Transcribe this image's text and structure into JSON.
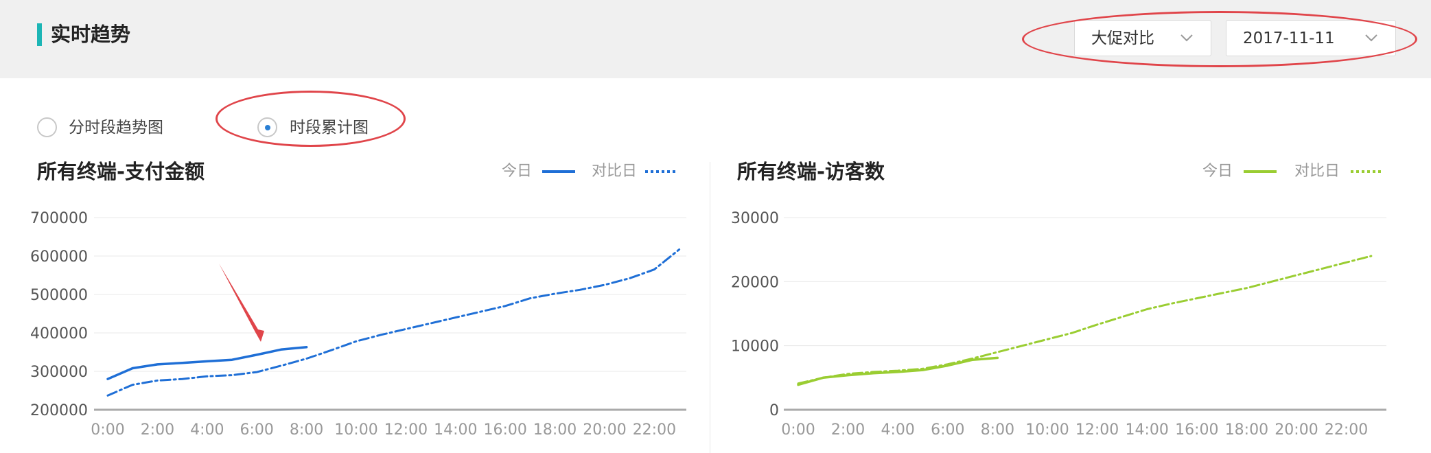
{
  "header": {
    "title": "实时趋势"
  },
  "filters": {
    "compare_select": {
      "value": "大促对比"
    },
    "date_select": {
      "value": "2017-11-11"
    }
  },
  "view_mode": {
    "options": [
      {
        "label": "分时段趋势图",
        "selected": false
      },
      {
        "label": "时段累计图",
        "selected": true
      }
    ]
  },
  "colors": {
    "blue": "#1f6fd6",
    "green": "#9acd32",
    "annotation_red": "#e0454a",
    "title_accent": "#1cb5b5"
  },
  "chart_data": [
    {
      "type": "line",
      "title": "所有终端-支付金额",
      "xlabel": "",
      "ylabel": "",
      "x_ticks": [
        "0:00",
        "2:00",
        "4:00",
        "6:00",
        "8:00",
        "10:00",
        "12:00",
        "14:00",
        "16:00",
        "18:00",
        "20:00",
        "22:00"
      ],
      "y_ticks": [
        200000,
        300000,
        400000,
        500000,
        600000,
        700000
      ],
      "ylim": [
        200000,
        700000
      ],
      "xlim": [
        0,
        23
      ],
      "grid": true,
      "legend_position": "top-right",
      "series": [
        {
          "name": "今日",
          "style": "solid",
          "color": "#1f6fd6",
          "x": [
            0,
            1,
            2,
            3,
            4,
            5,
            6,
            7,
            8
          ],
          "y": [
            280000,
            308000,
            318000,
            322000,
            326000,
            330000,
            343000,
            357000,
            363000
          ]
        },
        {
          "name": "对比日",
          "style": "dashdot",
          "color": "#1f6fd6",
          "x": [
            0,
            1,
            2,
            3,
            4,
            5,
            6,
            7,
            8,
            9,
            10,
            11,
            12,
            13,
            14,
            15,
            16,
            17,
            18,
            19,
            20,
            21,
            22,
            23
          ],
          "y": [
            237000,
            265000,
            276000,
            280000,
            287000,
            290000,
            298000,
            315000,
            333000,
            355000,
            378000,
            395000,
            410000,
            425000,
            440000,
            455000,
            470000,
            490000,
            502000,
            512000,
            525000,
            542000,
            565000,
            617000
          ]
        }
      ]
    },
    {
      "type": "line",
      "title": "所有终端-访客数",
      "xlabel": "",
      "ylabel": "",
      "x_ticks": [
        "0:00",
        "2:00",
        "4:00",
        "6:00",
        "8:00",
        "10:00",
        "12:00",
        "14:00",
        "16:00",
        "18:00",
        "20:00",
        "22:00"
      ],
      "y_ticks": [
        0,
        10000,
        20000,
        30000
      ],
      "ylim": [
        0,
        30000
      ],
      "xlim": [
        0,
        23
      ],
      "grid": true,
      "legend_position": "top-right",
      "series": [
        {
          "name": "今日",
          "style": "solid",
          "color": "#9acd32",
          "x": [
            0,
            1,
            2,
            3,
            4,
            5,
            6,
            7,
            8
          ],
          "y": [
            3900,
            5000,
            5400,
            5700,
            5900,
            6200,
            6900,
            7800,
            8100
          ]
        },
        {
          "name": "对比日",
          "style": "dashdot",
          "color": "#9acd32",
          "x": [
            0,
            1,
            2,
            3,
            4,
            5,
            6,
            7,
            8,
            9,
            10,
            11,
            12,
            13,
            14,
            15,
            16,
            17,
            18,
            19,
            20,
            21,
            22,
            23
          ],
          "y": [
            4100,
            5000,
            5600,
            5900,
            6100,
            6400,
            7100,
            8000,
            9000,
            10000,
            11000,
            12000,
            13300,
            14500,
            15700,
            16600,
            17400,
            18200,
            19000,
            20000,
            21000,
            22000,
            23000,
            24000
          ]
        }
      ]
    }
  ]
}
